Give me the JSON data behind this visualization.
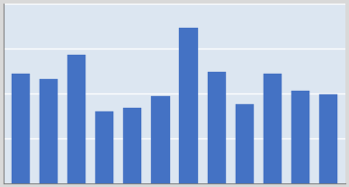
{
  "values": [
    5800,
    5500,
    6800,
    3800,
    4000,
    4600,
    8200,
    5900,
    4200,
    5800,
    4900,
    4700
  ],
  "bar_color": "#4472C4",
  "bar_edge_color": "#4472C4",
  "background_color": "#d9d9d9",
  "plot_bg_color": "#dce6f1",
  "ylim": [
    0,
    9500
  ],
  "grid_color": "#ffffff",
  "spine_color": "#7f7f7f",
  "figsize": [
    3.88,
    2.08
  ],
  "dpi": 100
}
